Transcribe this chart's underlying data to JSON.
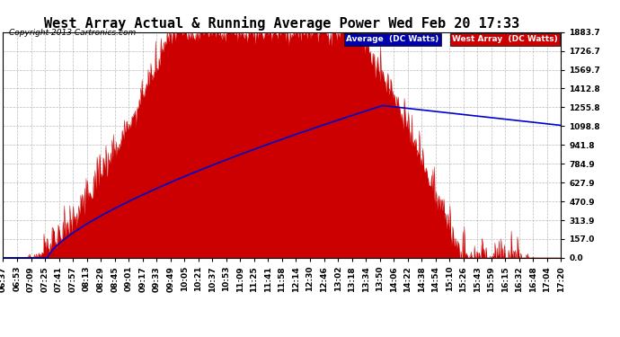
{
  "title": "West Array Actual & Running Average Power Wed Feb 20 17:33",
  "copyright": "Copyright 2013 Cartronics.com",
  "ylabel_right_ticks": [
    0.0,
    157.0,
    313.9,
    470.9,
    627.9,
    784.9,
    941.8,
    1098.8,
    1255.8,
    1412.8,
    1569.7,
    1726.7,
    1883.7
  ],
  "max_power": 1883.7,
  "legend_avg_label": "Average  (DC Watts)",
  "legend_west_label": "West Array  (DC Watts)",
  "bg_color": "#ffffff",
  "plot_bg_color": "#ffffff",
  "grid_color": "#aaaaaa",
  "fill_color": "#cc0000",
  "line_color": "#0000cc",
  "title_fontsize": 11,
  "tick_fontsize": 6.5,
  "xtick_labels": [
    "06:37",
    "06:53",
    "07:09",
    "07:25",
    "07:41",
    "07:57",
    "08:13",
    "08:29",
    "08:45",
    "09:01",
    "09:17",
    "09:33",
    "09:49",
    "10:05",
    "10:21",
    "10:37",
    "10:53",
    "11:09",
    "11:25",
    "11:41",
    "11:58",
    "12:14",
    "12:30",
    "12:46",
    "13:02",
    "13:18",
    "13:34",
    "13:50",
    "14:06",
    "14:22",
    "14:38",
    "14:54",
    "15:10",
    "15:26",
    "15:43",
    "15:59",
    "16:15",
    "16:32",
    "16:48",
    "17:04",
    "17:20"
  ]
}
